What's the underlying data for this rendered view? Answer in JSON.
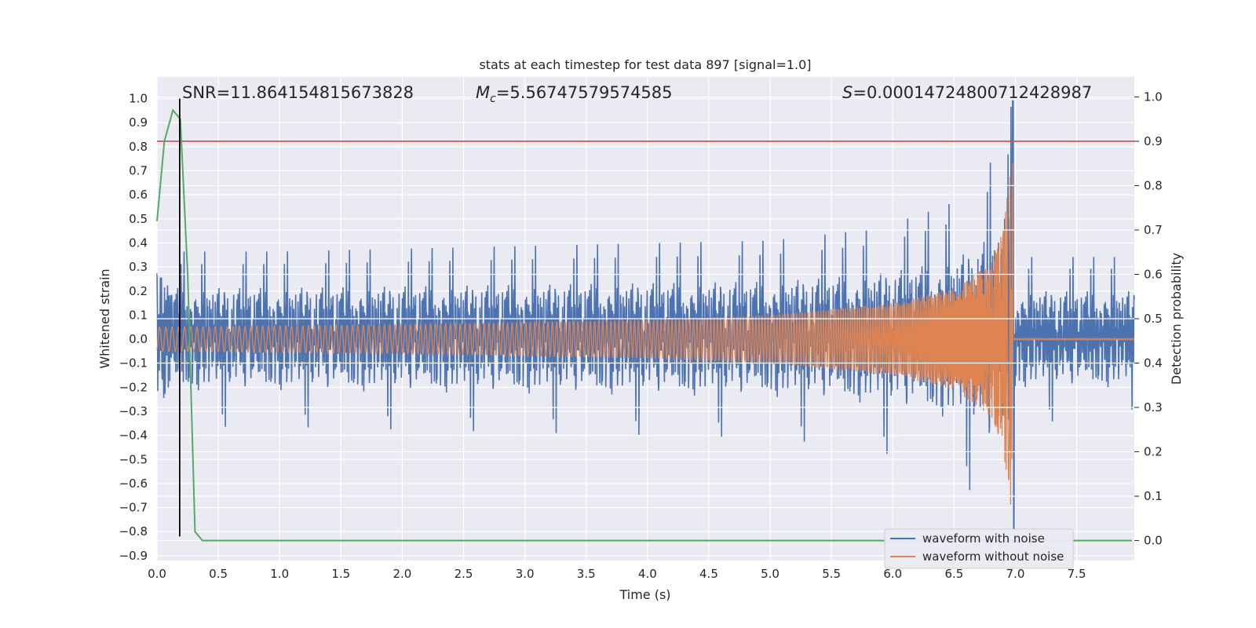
{
  "chart_data": {
    "type": "line",
    "title": "stats at each timestep for test data 897 [signal=1.0]",
    "xlabel": "Time (s)",
    "ylabel": "Whitened strain",
    "y2label": "Detection probability",
    "xlim": [
      0.0,
      7.97
    ],
    "ylim": [
      -0.92,
      1.09
    ],
    "y2lim": [
      -0.045,
      1.045
    ],
    "x_ticks": [
      "0.0",
      "0.5",
      "1.0",
      "1.5",
      "2.0",
      "2.5",
      "3.0",
      "3.5",
      "4.0",
      "4.5",
      "5.0",
      "5.5",
      "6.0",
      "6.5",
      "7.0",
      "7.5"
    ],
    "y_ticks": [
      "−0.9",
      "−0.8",
      "−0.7",
      "−0.6",
      "−0.5",
      "−0.4",
      "−0.3",
      "−0.2",
      "−0.1",
      "0.0",
      "0.1",
      "0.2",
      "0.3",
      "0.4",
      "0.5",
      "0.6",
      "0.7",
      "0.8",
      "0.9",
      "1.0"
    ],
    "y2_ticks": [
      "0.0",
      "0.1",
      "0.2",
      "0.3",
      "0.4",
      "0.5",
      "0.6",
      "0.7",
      "0.8",
      "0.9",
      "1.0"
    ],
    "annotations": {
      "snr": "SNR=11.864154815673828",
      "mc_prefix": "M",
      "mc_sub": "c",
      "mc_value": "=5.56747579574585",
      "s_prefix": "S",
      "s_value": "=0.00014724800712428987"
    },
    "legend": {
      "placement": "lower-right",
      "entries": [
        "waveform with noise",
        "waveform without noise"
      ]
    },
    "grid": true,
    "colors": {
      "background": "#eaeaf2",
      "grid": "#ffffff",
      "noisy": "#4c72b0",
      "clean": "#dd8452",
      "probability": "#55a868",
      "threshold": "#c44e52",
      "marker": "#000000"
    },
    "series": [
      {
        "name": "waveform with noise",
        "axis": "left",
        "noise_envelope_t": [
          0.0,
          1.0,
          2.0,
          3.0,
          4.0,
          5.0,
          5.8,
          6.2,
          6.5,
          6.7,
          6.85,
          6.95,
          6.98,
          7.0,
          7.97
        ],
        "noise_envelope_amp": [
          0.32,
          0.32,
          0.33,
          0.34,
          0.35,
          0.36,
          0.4,
          0.45,
          0.5,
          0.58,
          0.68,
          0.8,
          0.9,
          0.3,
          0.3
        ],
        "peak_max": 0.99,
        "peak_min": -0.8
      },
      {
        "name": "waveform without noise",
        "axis": "left",
        "merger_time": 6.98,
        "envelope_t": [
          0.0,
          2.0,
          4.0,
          5.0,
          6.0,
          6.5,
          6.8,
          6.9,
          6.98
        ],
        "envelope_amp": [
          0.05,
          0.06,
          0.08,
          0.1,
          0.15,
          0.21,
          0.32,
          0.45,
          0.8
        ]
      },
      {
        "name": "detection probability",
        "axis": "right",
        "x": [
          0.0,
          0.06,
          0.13,
          0.19,
          0.25,
          0.31,
          0.37,
          7.95
        ],
        "y": [
          0.72,
          0.9,
          0.97,
          0.95,
          0.6,
          0.02,
          0.0,
          0.0
        ]
      }
    ],
    "threshold_probability": 0.9,
    "marker_time": 0.185,
    "marker_range": [
      -0.82,
      1.0
    ]
  }
}
